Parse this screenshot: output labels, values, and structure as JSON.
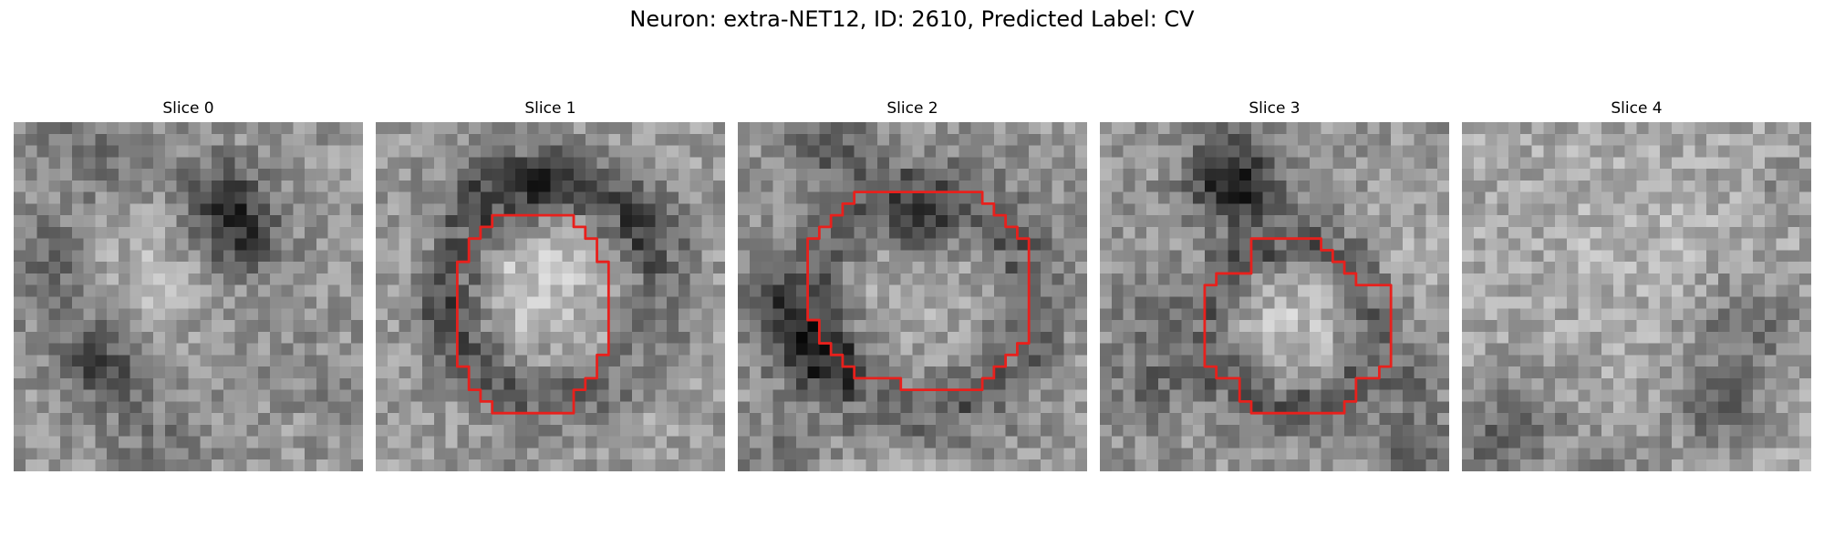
{
  "figure": {
    "title": "Neuron: extra-NET12, ID: 2610, Predicted Label: CV",
    "outline_color": "#e8201c"
  },
  "panels": [
    {
      "title": "Slice 0",
      "has_outline": false,
      "seed": 11
    },
    {
      "title": "Slice 1",
      "has_outline": true,
      "seed": 23
    },
    {
      "title": "Slice 2",
      "has_outline": true,
      "seed": 37
    },
    {
      "title": "Slice 3",
      "has_outline": true,
      "seed": 51
    },
    {
      "title": "Slice 4",
      "has_outline": false,
      "seed": 67
    }
  ]
}
